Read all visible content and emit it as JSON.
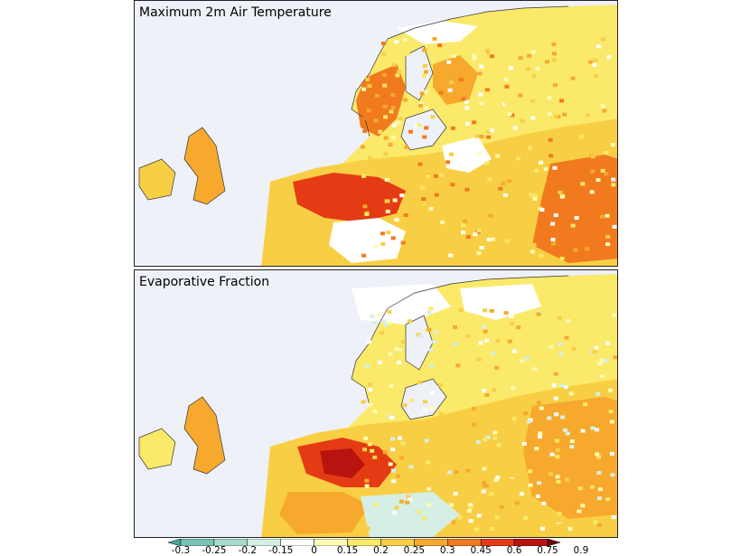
{
  "panels": [
    {
      "title": "Maximum 2m Air Temperature"
    },
    {
      "title": "Evaporative Fraction"
    }
  ],
  "colorbar": {
    "ticks": [
      "-0.3",
      "-0.25",
      "-0.2",
      "-0.15",
      "0",
      "0.15",
      "0.2",
      "0.25",
      "0.3",
      "0.45",
      "0.6",
      "0.75",
      "0.9"
    ],
    "colors": [
      "#4ba89e",
      "#79c2b6",
      "#a7d9cc",
      "#d6efe4",
      "#ffffff",
      "#fdfbb4",
      "#fbe96a",
      "#f8cf44",
      "#f6a92d",
      "#f17a1f",
      "#e43b14",
      "#b8130f",
      "#6b0806"
    ]
  },
  "colors": {
    "ocean": "#eef1f8",
    "land_nodata": "#ffffff",
    "coastline": "#333333"
  }
}
